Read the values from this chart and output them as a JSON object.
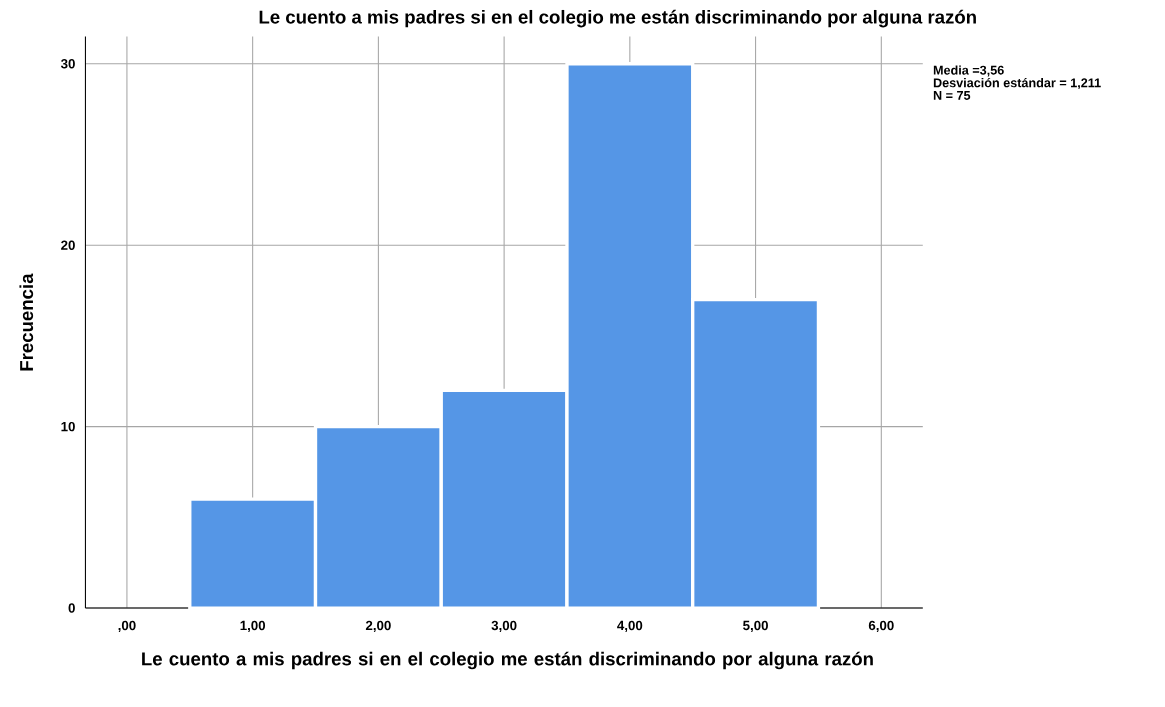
{
  "chart_data": {
    "type": "histogram",
    "title": "Le cuento a mis padres si en el colegio me están discriminando por alguna razón",
    "xlabel": "Le cuento a mis padres si en el colegio me están discriminando por alguna razón",
    "ylabel": "Frecuencia",
    "bins": [
      0.5,
      1.5,
      2.5,
      3.5,
      4.5,
      5.5
    ],
    "values": [
      6,
      10,
      12,
      30,
      17
    ],
    "color": "#5596e6",
    "xlim": [
      -0.33,
      6.33
    ],
    "ylim": [
      0,
      31.5
    ],
    "xticks": [
      {
        "value": 0,
        "label": ",00"
      },
      {
        "value": 1,
        "label": "1,00"
      },
      {
        "value": 2,
        "label": "2,00"
      },
      {
        "value": 3,
        "label": "3,00"
      },
      {
        "value": 4,
        "label": "4,00"
      },
      {
        "value": 5,
        "label": "5,00"
      },
      {
        "value": 6,
        "label": "6,00"
      }
    ],
    "yticks": [
      0,
      10,
      20,
      30
    ],
    "grid": true,
    "annotations": [
      "Media =3,56",
      "Desviación estándar = 1,211",
      "N = 75"
    ]
  }
}
